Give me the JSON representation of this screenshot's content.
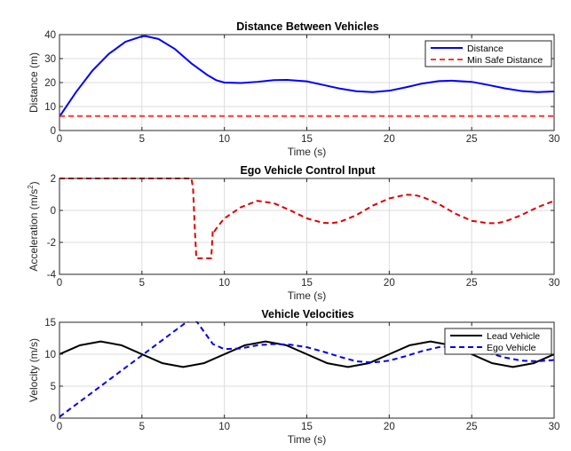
{
  "chart_data": [
    {
      "type": "line",
      "title": "Distance Between Vehicles",
      "xlabel": "Time (s)",
      "ylabel": "Distance (m)",
      "xlim": [
        0,
        30
      ],
      "ylim": [
        0,
        40
      ],
      "xticks": [
        0,
        5,
        10,
        15,
        20,
        25,
        30
      ],
      "yticks": [
        0,
        10,
        20,
        30,
        40
      ],
      "grid": true,
      "legend": "top-right",
      "series": [
        {
          "name": "Distance",
          "color": "#0000ff",
          "style": "solid",
          "x": [
            0,
            1,
            2,
            3,
            4,
            5,
            5.2,
            6,
            7,
            8,
            9,
            9.5,
            10,
            11,
            12,
            13,
            13.8,
            15,
            16,
            17,
            18,
            19,
            20,
            21,
            22,
            23,
            23.8,
            25,
            26,
            27,
            28,
            29,
            30
          ],
          "y": [
            5.8,
            16,
            25,
            32,
            37,
            39.3,
            39.4,
            38.2,
            34,
            28,
            23,
            21,
            20,
            19.8,
            20.3,
            21,
            21.1,
            20.5,
            19,
            17.5,
            16.4,
            16,
            16.6,
            18,
            19.6,
            20.6,
            20.8,
            20.3,
            19,
            17.6,
            16.5,
            16,
            16.3
          ]
        },
        {
          "name": "Min Safe Distance",
          "color": "#ff3333",
          "style": "dashed",
          "x": [
            0,
            30
          ],
          "y": [
            6,
            6
          ]
        }
      ]
    },
    {
      "type": "line",
      "title": "Ego Vehicle Control Input",
      "xlabel": "Time (s)",
      "ylabel": "Acceleration",
      "ylabel_unit": "(m/s",
      "ylabel_sup": "2",
      "ylabel_end": ")",
      "xlim": [
        0,
        30
      ],
      "ylim": [
        -4,
        2
      ],
      "xticks": [
        0,
        5,
        10,
        15,
        20,
        25,
        30
      ],
      "yticks": [
        -4,
        -2,
        0,
        2
      ],
      "grid": true,
      "series": [
        {
          "color": "#e00000",
          "style": "dashed",
          "x": [
            0,
            8.0,
            8.1,
            8.2,
            8.3,
            9.2,
            9.25,
            9.3,
            9.4,
            9.6,
            10,
            11,
            12,
            13,
            14,
            15,
            16,
            16.5,
            17,
            18,
            19,
            20,
            21,
            21.5,
            22,
            23,
            24,
            25,
            26,
            26.5,
            27,
            28,
            29,
            30
          ],
          "y": [
            2,
            2,
            1.4,
            -1.0,
            -3.0,
            -3.0,
            -2.2,
            -1.2,
            -1.3,
            -1.0,
            -0.5,
            0.2,
            0.6,
            0.45,
            0.0,
            -0.5,
            -0.78,
            -0.8,
            -0.72,
            -0.3,
            0.3,
            0.75,
            0.98,
            0.97,
            0.85,
            0.4,
            -0.2,
            -0.65,
            -0.8,
            -0.8,
            -0.7,
            -0.3,
            0.2,
            0.6
          ]
        }
      ]
    },
    {
      "type": "line",
      "title": "Vehicle Velocities",
      "xlabel": "Time (s)",
      "ylabel": "Velocity (m/s)",
      "xlim": [
        0,
        30
      ],
      "ylim": [
        0,
        15
      ],
      "xticks": [
        0,
        5,
        10,
        15,
        20,
        25,
        30
      ],
      "yticks": [
        0,
        5,
        10,
        15
      ],
      "grid": true,
      "legend": "top-right",
      "series": [
        {
          "name": "Lead Vehicle",
          "color": "#000000",
          "style": "solid",
          "x": [
            0,
            1.25,
            2.5,
            3.75,
            5,
            6.25,
            7.5,
            8.75,
            10,
            11.25,
            12.5,
            13.75,
            15,
            16.25,
            17.5,
            18.75,
            20,
            21.25,
            22.5,
            23.75,
            25,
            26.25,
            27.5,
            28.75,
            30
          ],
          "y": [
            10,
            11.41,
            12,
            11.41,
            10,
            8.59,
            8,
            8.59,
            10,
            11.41,
            12,
            11.41,
            10,
            8.59,
            8,
            8.59,
            10,
            11.41,
            12,
            11.41,
            10,
            8.59,
            8,
            8.59,
            10
          ]
        },
        {
          "name": "Ego Vehicle",
          "color": "#0000ee",
          "style": "dashed",
          "x": [
            0,
            8.0,
            8.3,
            9.3,
            10,
            11,
            12,
            13,
            14,
            15,
            16,
            17,
            18,
            19,
            20,
            21,
            22,
            23,
            24,
            25,
            26,
            27,
            28,
            29,
            30
          ],
          "y": [
            0.2,
            15.6,
            15.2,
            11.6,
            10.8,
            10.9,
            11.4,
            11.6,
            11.5,
            11.1,
            10.4,
            9.6,
            8.9,
            8.7,
            9.0,
            9.7,
            10.5,
            11.1,
            11.3,
            10.9,
            10.2,
            9.5,
            9.0,
            8.9,
            9.1
          ]
        }
      ]
    }
  ]
}
